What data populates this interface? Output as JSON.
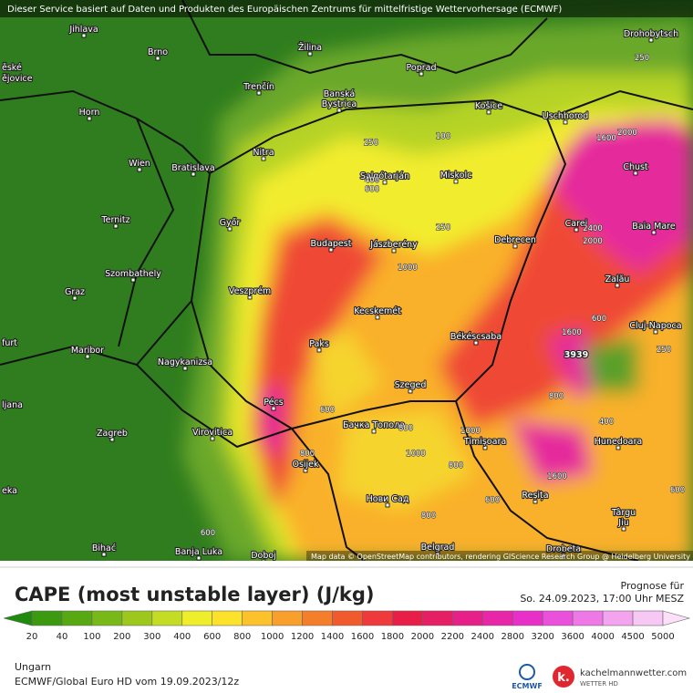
{
  "header": {
    "notice": "Dieser Service basiert auf Daten und Produkten des Europäischen Zentrums für mittelfristige Wettervorhersage (ECMWF)"
  },
  "map": {
    "cities": [
      "Jihlava",
      "Brno",
      "Žilina",
      "Poprad",
      "Drohobytsch",
      "ěské",
      "ějovice",
      "Trenčín",
      "Banská",
      "Bystrica",
      "Košice",
      "Uschhorod",
      "Horn",
      "Nitra",
      "Wien",
      "Bratislava",
      "Salgótarján",
      "Miskolc",
      "Chust",
      "Ternitz",
      "Győr",
      "Budapest",
      "Jászberény",
      "Debrecen",
      "Carei",
      "Baia Mare",
      "Szombathely",
      "Zalău",
      "Graz",
      "Veszprém",
      "Kecskemét",
      "Cluj-Napoca",
      "furt",
      "Maribor",
      "Paks",
      "Békéscsaba",
      "Nagykanizsa",
      "Pécs",
      "Szeged",
      "ljana",
      "Zagreb",
      "Virovitica",
      "Бачка Топола",
      "Timișoara",
      "Hunedoara",
      "Osijek",
      "Нови Сад",
      "Reșița",
      "eka",
      "Târgu",
      "Jiu",
      "Bihać",
      "Banja Luka",
      "Doboj",
      "Belgrad",
      "Drobeta"
    ],
    "contour_labels": [
      250,
      250,
      100,
      1600,
      2000,
      400,
      600,
      250,
      2400,
      2000,
      1000,
      600,
      1600,
      250,
      800,
      400,
      600,
      800,
      1000,
      1000,
      800,
      800,
      1600,
      600,
      600,
      800,
      600
    ],
    "peak_label": 3939,
    "attribution": "Map data © OpenStreetMap contributors, rendering GIScience Research Group @ Heidelberg University"
  },
  "legend": {
    "title": "CAPE (most unstable layer) (J/kg)",
    "ticks": [
      20,
      40,
      100,
      200,
      300,
      400,
      600,
      800,
      1000,
      1200,
      1400,
      1600,
      1800,
      2000,
      2200,
      2400,
      2800,
      3200,
      3600,
      4000,
      4500,
      5000
    ],
    "colors": [
      "#208a0c",
      "#3c9a10",
      "#58a814",
      "#78b818",
      "#9cc81e",
      "#c4dc24",
      "#eeef2a",
      "#fde22c",
      "#fcc22c",
      "#f9a02c",
      "#f57e2c",
      "#f15a2c",
      "#ee3a3a",
      "#e81e46",
      "#e61e64",
      "#e62088",
      "#e826a8",
      "#e830c8",
      "#ea50dc",
      "#ee78e6",
      "#f4a4ee",
      "#f8c8f4",
      "#fbe0f8"
    ]
  },
  "forecast": {
    "label": "Prognose für",
    "time": "So. 24.09.2023, 17:00 Uhr MESZ"
  },
  "footer": {
    "region": "Ungarn",
    "model": "ECMWF/Global Euro HD vom 19.09.2023/12z",
    "ecmwf_logo": "ECMWF",
    "site": "kachelmannwetter.com",
    "site_sub": "WETTER HD"
  }
}
